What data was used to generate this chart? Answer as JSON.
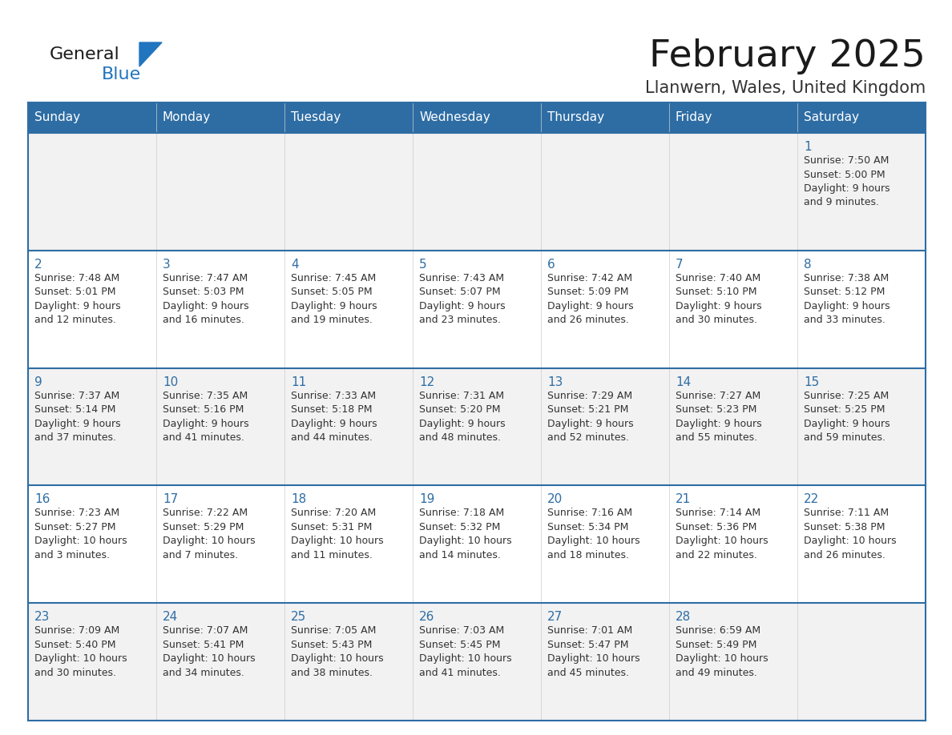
{
  "title": "February 2025",
  "subtitle": "Llanwern, Wales, United Kingdom",
  "header_bg": "#2E6DA4",
  "header_text_color": "#FFFFFF",
  "cell_bg_even": "#F2F2F2",
  "cell_bg_white": "#FFFFFF",
  "border_color": "#2E6DA4",
  "day_number_color": "#2E6DA4",
  "text_color": "#333333",
  "days_of_week": [
    "Sunday",
    "Monday",
    "Tuesday",
    "Wednesday",
    "Thursday",
    "Friday",
    "Saturday"
  ],
  "weeks": [
    [
      {
        "day": "",
        "info": ""
      },
      {
        "day": "",
        "info": ""
      },
      {
        "day": "",
        "info": ""
      },
      {
        "day": "",
        "info": ""
      },
      {
        "day": "",
        "info": ""
      },
      {
        "day": "",
        "info": ""
      },
      {
        "day": "1",
        "info": "Sunrise: 7:50 AM\nSunset: 5:00 PM\nDaylight: 9 hours\nand 9 minutes."
      }
    ],
    [
      {
        "day": "2",
        "info": "Sunrise: 7:48 AM\nSunset: 5:01 PM\nDaylight: 9 hours\nand 12 minutes."
      },
      {
        "day": "3",
        "info": "Sunrise: 7:47 AM\nSunset: 5:03 PM\nDaylight: 9 hours\nand 16 minutes."
      },
      {
        "day": "4",
        "info": "Sunrise: 7:45 AM\nSunset: 5:05 PM\nDaylight: 9 hours\nand 19 minutes."
      },
      {
        "day": "5",
        "info": "Sunrise: 7:43 AM\nSunset: 5:07 PM\nDaylight: 9 hours\nand 23 minutes."
      },
      {
        "day": "6",
        "info": "Sunrise: 7:42 AM\nSunset: 5:09 PM\nDaylight: 9 hours\nand 26 minutes."
      },
      {
        "day": "7",
        "info": "Sunrise: 7:40 AM\nSunset: 5:10 PM\nDaylight: 9 hours\nand 30 minutes."
      },
      {
        "day": "8",
        "info": "Sunrise: 7:38 AM\nSunset: 5:12 PM\nDaylight: 9 hours\nand 33 minutes."
      }
    ],
    [
      {
        "day": "9",
        "info": "Sunrise: 7:37 AM\nSunset: 5:14 PM\nDaylight: 9 hours\nand 37 minutes."
      },
      {
        "day": "10",
        "info": "Sunrise: 7:35 AM\nSunset: 5:16 PM\nDaylight: 9 hours\nand 41 minutes."
      },
      {
        "day": "11",
        "info": "Sunrise: 7:33 AM\nSunset: 5:18 PM\nDaylight: 9 hours\nand 44 minutes."
      },
      {
        "day": "12",
        "info": "Sunrise: 7:31 AM\nSunset: 5:20 PM\nDaylight: 9 hours\nand 48 minutes."
      },
      {
        "day": "13",
        "info": "Sunrise: 7:29 AM\nSunset: 5:21 PM\nDaylight: 9 hours\nand 52 minutes."
      },
      {
        "day": "14",
        "info": "Sunrise: 7:27 AM\nSunset: 5:23 PM\nDaylight: 9 hours\nand 55 minutes."
      },
      {
        "day": "15",
        "info": "Sunrise: 7:25 AM\nSunset: 5:25 PM\nDaylight: 9 hours\nand 59 minutes."
      }
    ],
    [
      {
        "day": "16",
        "info": "Sunrise: 7:23 AM\nSunset: 5:27 PM\nDaylight: 10 hours\nand 3 minutes."
      },
      {
        "day": "17",
        "info": "Sunrise: 7:22 AM\nSunset: 5:29 PM\nDaylight: 10 hours\nand 7 minutes."
      },
      {
        "day": "18",
        "info": "Sunrise: 7:20 AM\nSunset: 5:31 PM\nDaylight: 10 hours\nand 11 minutes."
      },
      {
        "day": "19",
        "info": "Sunrise: 7:18 AM\nSunset: 5:32 PM\nDaylight: 10 hours\nand 14 minutes."
      },
      {
        "day": "20",
        "info": "Sunrise: 7:16 AM\nSunset: 5:34 PM\nDaylight: 10 hours\nand 18 minutes."
      },
      {
        "day": "21",
        "info": "Sunrise: 7:14 AM\nSunset: 5:36 PM\nDaylight: 10 hours\nand 22 minutes."
      },
      {
        "day": "22",
        "info": "Sunrise: 7:11 AM\nSunset: 5:38 PM\nDaylight: 10 hours\nand 26 minutes."
      }
    ],
    [
      {
        "day": "23",
        "info": "Sunrise: 7:09 AM\nSunset: 5:40 PM\nDaylight: 10 hours\nand 30 minutes."
      },
      {
        "day": "24",
        "info": "Sunrise: 7:07 AM\nSunset: 5:41 PM\nDaylight: 10 hours\nand 34 minutes."
      },
      {
        "day": "25",
        "info": "Sunrise: 7:05 AM\nSunset: 5:43 PM\nDaylight: 10 hours\nand 38 minutes."
      },
      {
        "day": "26",
        "info": "Sunrise: 7:03 AM\nSunset: 5:45 PM\nDaylight: 10 hours\nand 41 minutes."
      },
      {
        "day": "27",
        "info": "Sunrise: 7:01 AM\nSunset: 5:47 PM\nDaylight: 10 hours\nand 45 minutes."
      },
      {
        "day": "28",
        "info": "Sunrise: 6:59 AM\nSunset: 5:49 PM\nDaylight: 10 hours\nand 49 minutes."
      },
      {
        "day": "",
        "info": ""
      }
    ]
  ],
  "logo_color_general": "#1a1a1a",
  "logo_color_blue": "#2175be",
  "logo_triangle_color": "#2175be",
  "title_fontsize": 34,
  "subtitle_fontsize": 15,
  "header_fontsize": 11,
  "day_num_fontsize": 11,
  "info_fontsize": 9
}
